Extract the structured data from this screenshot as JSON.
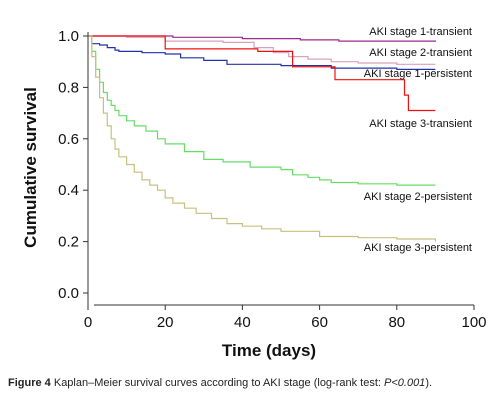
{
  "chart_data": {
    "type": "line",
    "subtype": "kaplan-meier step",
    "xlabel": "Time (days)",
    "ylabel": "Cumulative survival",
    "xlim": [
      0,
      100
    ],
    "ylim": [
      0,
      1.0
    ],
    "xticks": [
      0,
      20,
      40,
      60,
      80,
      100
    ],
    "yticks": [
      "0.0",
      "0.2",
      "0.4",
      "0.6",
      "0.8",
      "1.0"
    ],
    "grid": false,
    "legend": "inline labels at right of curves",
    "series": [
      {
        "name": "AKI stage 1-transient",
        "color": "#9a2a8a",
        "points": [
          [
            0,
            1.0
          ],
          [
            22,
            0.995
          ],
          [
            40,
            0.99
          ],
          [
            55,
            0.985
          ],
          [
            65,
            0.98
          ],
          [
            90,
            0.978
          ]
        ]
      },
      {
        "name": "AKI stage 2-transient",
        "color": "#d9a0c0",
        "points": [
          [
            0,
            1.0
          ],
          [
            10,
            0.995
          ],
          [
            20,
            0.98
          ],
          [
            35,
            0.975
          ],
          [
            43,
            0.955
          ],
          [
            48,
            0.935
          ],
          [
            52,
            0.92
          ],
          [
            57,
            0.91
          ],
          [
            63,
            0.9
          ],
          [
            70,
            0.895
          ],
          [
            80,
            0.89
          ],
          [
            90,
            0.89
          ]
        ]
      },
      {
        "name": "AKI stage 1-persistent",
        "color": "#2233aa",
        "points": [
          [
            0,
            1.0
          ],
          [
            1,
            0.97
          ],
          [
            3,
            0.965
          ],
          [
            5,
            0.955
          ],
          [
            7,
            0.945
          ],
          [
            8,
            0.94
          ],
          [
            14,
            0.935
          ],
          [
            20,
            0.93
          ],
          [
            24,
            0.915
          ],
          [
            30,
            0.905
          ],
          [
            36,
            0.89
          ],
          [
            50,
            0.885
          ],
          [
            63,
            0.875
          ],
          [
            80,
            0.87
          ],
          [
            90,
            0.87
          ]
        ]
      },
      {
        "name": "AKI stage 3-transient",
        "color": "#ee1111",
        "points": [
          [
            0,
            1.0
          ],
          [
            20,
            1.0
          ],
          [
            20,
            0.95
          ],
          [
            44,
            0.95
          ],
          [
            44,
            0.94
          ],
          [
            53,
            0.94
          ],
          [
            53,
            0.88
          ],
          [
            64,
            0.88
          ],
          [
            64,
            0.83
          ],
          [
            82,
            0.83
          ],
          [
            82,
            0.77
          ],
          [
            83,
            0.77
          ],
          [
            83,
            0.71
          ],
          [
            90,
            0.71
          ]
        ]
      },
      {
        "name": "AKI stage 2-persistent",
        "color": "#66dd66",
        "points": [
          [
            0,
            1.0
          ],
          [
            1,
            0.94
          ],
          [
            2,
            0.87
          ],
          [
            3,
            0.82
          ],
          [
            4,
            0.78
          ],
          [
            5,
            0.75
          ],
          [
            6,
            0.73
          ],
          [
            7,
            0.71
          ],
          [
            8,
            0.69
          ],
          [
            10,
            0.67
          ],
          [
            12,
            0.65
          ],
          [
            15,
            0.63
          ],
          [
            18,
            0.6
          ],
          [
            20,
            0.58
          ],
          [
            25,
            0.55
          ],
          [
            30,
            0.52
          ],
          [
            35,
            0.51
          ],
          [
            42,
            0.49
          ],
          [
            50,
            0.48
          ],
          [
            53,
            0.46
          ],
          [
            57,
            0.45
          ],
          [
            60,
            0.44
          ],
          [
            63,
            0.43
          ],
          [
            70,
            0.425
          ],
          [
            80,
            0.42
          ],
          [
            90,
            0.42
          ]
        ]
      },
      {
        "name": "AKI stage 3-persistent",
        "color": "#c8c080",
        "points": [
          [
            0,
            1.0
          ],
          [
            1,
            0.92
          ],
          [
            2,
            0.84
          ],
          [
            3,
            0.76
          ],
          [
            4,
            0.7
          ],
          [
            5,
            0.65
          ],
          [
            6,
            0.6
          ],
          [
            7,
            0.56
          ],
          [
            8,
            0.53
          ],
          [
            10,
            0.5
          ],
          [
            12,
            0.47
          ],
          [
            14,
            0.44
          ],
          [
            16,
            0.42
          ],
          [
            18,
            0.4
          ],
          [
            20,
            0.37
          ],
          [
            22,
            0.35
          ],
          [
            25,
            0.33
          ],
          [
            28,
            0.31
          ],
          [
            32,
            0.29
          ],
          [
            36,
            0.27
          ],
          [
            40,
            0.26
          ],
          [
            45,
            0.25
          ],
          [
            50,
            0.24
          ],
          [
            60,
            0.22
          ],
          [
            70,
            0.215
          ],
          [
            80,
            0.21
          ],
          [
            90,
            0.2
          ]
        ]
      }
    ]
  },
  "caption": {
    "figure_label": "Figure 4",
    "text": " Kaplan–Meier survival curves according to AKI stage (log-rank test: ",
    "p_value": "P<0.001",
    "end": ")."
  }
}
